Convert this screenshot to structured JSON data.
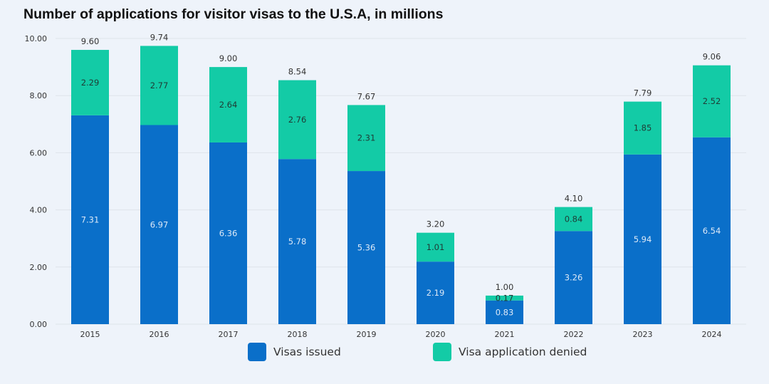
{
  "chart_data": {
    "type": "bar",
    "stacked": true,
    "title": "Number of applications for visitor visas to the U.S.A, in millions",
    "xlabel": "",
    "ylabel": "",
    "ylim": [
      0,
      10
    ],
    "yticks": [
      "0.00",
      "2.00",
      "4.00",
      "6.00",
      "8.00",
      "10.00"
    ],
    "grid": true,
    "legend_position": "bottom",
    "categories": [
      "2015",
      "2016",
      "2017",
      "2018",
      "2019",
      "2020",
      "2021",
      "2022",
      "2023",
      "2024"
    ],
    "series": [
      {
        "name": "Visas issued",
        "color": "#0a6fc9",
        "values": [
          7.31,
          6.97,
          6.36,
          5.78,
          5.36,
          2.19,
          0.83,
          3.26,
          5.94,
          6.54
        ],
        "labels": [
          "7.31",
          "6.97",
          "6.36",
          "5.78",
          "5.36",
          "2.19",
          "0.83",
          "3.26",
          "5.94",
          "6.54"
        ]
      },
      {
        "name": "Visa application denied",
        "color": "#13cba6",
        "values": [
          2.29,
          2.77,
          2.64,
          2.76,
          2.31,
          1.01,
          0.17,
          0.84,
          1.85,
          2.52
        ],
        "labels": [
          "2.29",
          "2.77",
          "2.64",
          "2.76",
          "2.31",
          "1.01",
          "0.17",
          "0.84",
          "1.85",
          "2.52"
        ]
      }
    ],
    "totals": [
      9.6,
      9.74,
      9.0,
      8.54,
      7.67,
      3.2,
      1.0,
      4.1,
      7.79,
      9.06
    ],
    "total_labels": [
      "9.60",
      "9.74",
      "9.00",
      "8.54",
      "7.67",
      "3.20",
      "1.00",
      "4.10",
      "7.79",
      "9.06"
    ]
  }
}
